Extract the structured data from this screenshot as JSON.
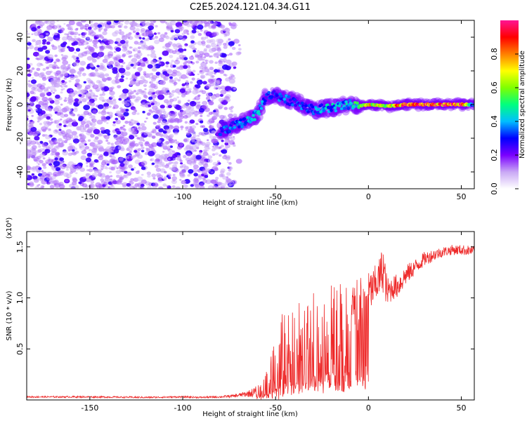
{
  "chart_data": [
    {
      "type": "heatmap",
      "title": "C2E5.2024.121.04.34.G11",
      "xlabel": "Height of straight line (km)",
      "ylabel": "Frequency (Hz)",
      "xlim": [
        -184,
        57
      ],
      "ylim": [
        -50,
        50
      ],
      "x_ticks": [
        -150,
        -100,
        -50,
        0,
        50
      ],
      "y_ticks": [
        -40,
        -20,
        0,
        20,
        40
      ],
      "colorbar": {
        "label": "Normalized spectral amplitude",
        "range": [
          0,
          1
        ],
        "ticks": [
          0.0,
          0.2,
          0.4,
          0.6,
          0.8
        ],
        "tick_labels": [
          "0.0",
          "0.2",
          "0.4",
          "0.6",
          "0.8"
        ],
        "colormap": [
          "#ffffff",
          "#c9a8f5",
          "#7a00ff",
          "#0000ff",
          "#00bfff",
          "#00ff7f",
          "#7fff00",
          "#ffff00",
          "#ff7f00",
          "#ff0000",
          "#ff1493"
        ]
      },
      "noise_region": {
        "x_range": [
          -184,
          -72
        ],
        "freq_range": [
          -50,
          50
        ],
        "amplitude": 0.15
      },
      "signal_trace": {
        "x": [
          -80,
          -70,
          -60,
          -55,
          -50,
          -45,
          -40,
          -30,
          -20,
          -10,
          -5,
          0,
          10,
          20,
          30,
          40,
          50,
          57
        ],
        "freq": [
          -16,
          -12,
          -6,
          5,
          6,
          3,
          2,
          -3,
          -2,
          0,
          -1,
          0,
          -1,
          0,
          0,
          0,
          0,
          0
        ],
        "amplitude": [
          0.3,
          0.35,
          0.4,
          0.3,
          0.3,
          0.35,
          0.3,
          0.35,
          0.4,
          0.45,
          0.55,
          0.7,
          0.65,
          0.9,
          0.9,
          0.9,
          0.85,
          0.3
        ]
      }
    },
    {
      "type": "line",
      "xlabel": "Height of straight line (km)",
      "ylabel": "SNR (10 * v/v)",
      "y_scale_label": "(x10⁴)",
      "xlim": [
        -184,
        57
      ],
      "ylim": [
        0,
        1.65
      ],
      "x_ticks": [
        -150,
        -100,
        -50,
        0,
        50
      ],
      "y_ticks": [
        0.5,
        1.0,
        1.5
      ],
      "y_tick_labels": [
        "0.5",
        "1.0",
        "1.5"
      ],
      "color": "#ee2a2a",
      "series": [
        {
          "x": [
            -184,
            -150,
            -120,
            -100,
            -90,
            -80,
            -72,
            -65,
            -60,
            -57,
            -54,
            -51,
            -48,
            -45,
            -42,
            -40,
            -37,
            -34,
            -30,
            -27,
            -24,
            -21,
            -18,
            -15,
            -12,
            -9,
            -6,
            -3,
            0,
            3,
            6,
            8,
            10,
            13,
            16,
            20,
            25,
            30,
            35,
            40,
            45,
            50,
            57
          ],
          "y": [
            0.03,
            0.03,
            0.025,
            0.03,
            0.025,
            0.03,
            0.04,
            0.06,
            0.08,
            0.12,
            0.18,
            0.28,
            0.4,
            0.5,
            0.48,
            0.45,
            0.52,
            0.55,
            0.6,
            0.62,
            0.65,
            0.7,
            0.68,
            0.72,
            0.75,
            0.8,
            0.9,
            1.0,
            1.05,
            1.1,
            1.2,
            1.3,
            1.05,
            1.1,
            1.12,
            1.22,
            1.3,
            1.38,
            1.42,
            1.45,
            1.47,
            1.47,
            1.46
          ],
          "noise": [
            0.008,
            0.008,
            0.008,
            0.008,
            0.008,
            0.01,
            0.015,
            0.03,
            0.06,
            0.14,
            0.22,
            0.32,
            0.42,
            0.45,
            0.45,
            0.42,
            0.45,
            0.4,
            0.45,
            0.5,
            0.55,
            0.5,
            0.5,
            0.45,
            0.4,
            0.32,
            0.28,
            0.22,
            0.2,
            0.2,
            0.2,
            0.25,
            0.15,
            0.12,
            0.12,
            0.1,
            0.08,
            0.07,
            0.06,
            0.05,
            0.05,
            0.05,
            0.05
          ]
        }
      ]
    }
  ]
}
